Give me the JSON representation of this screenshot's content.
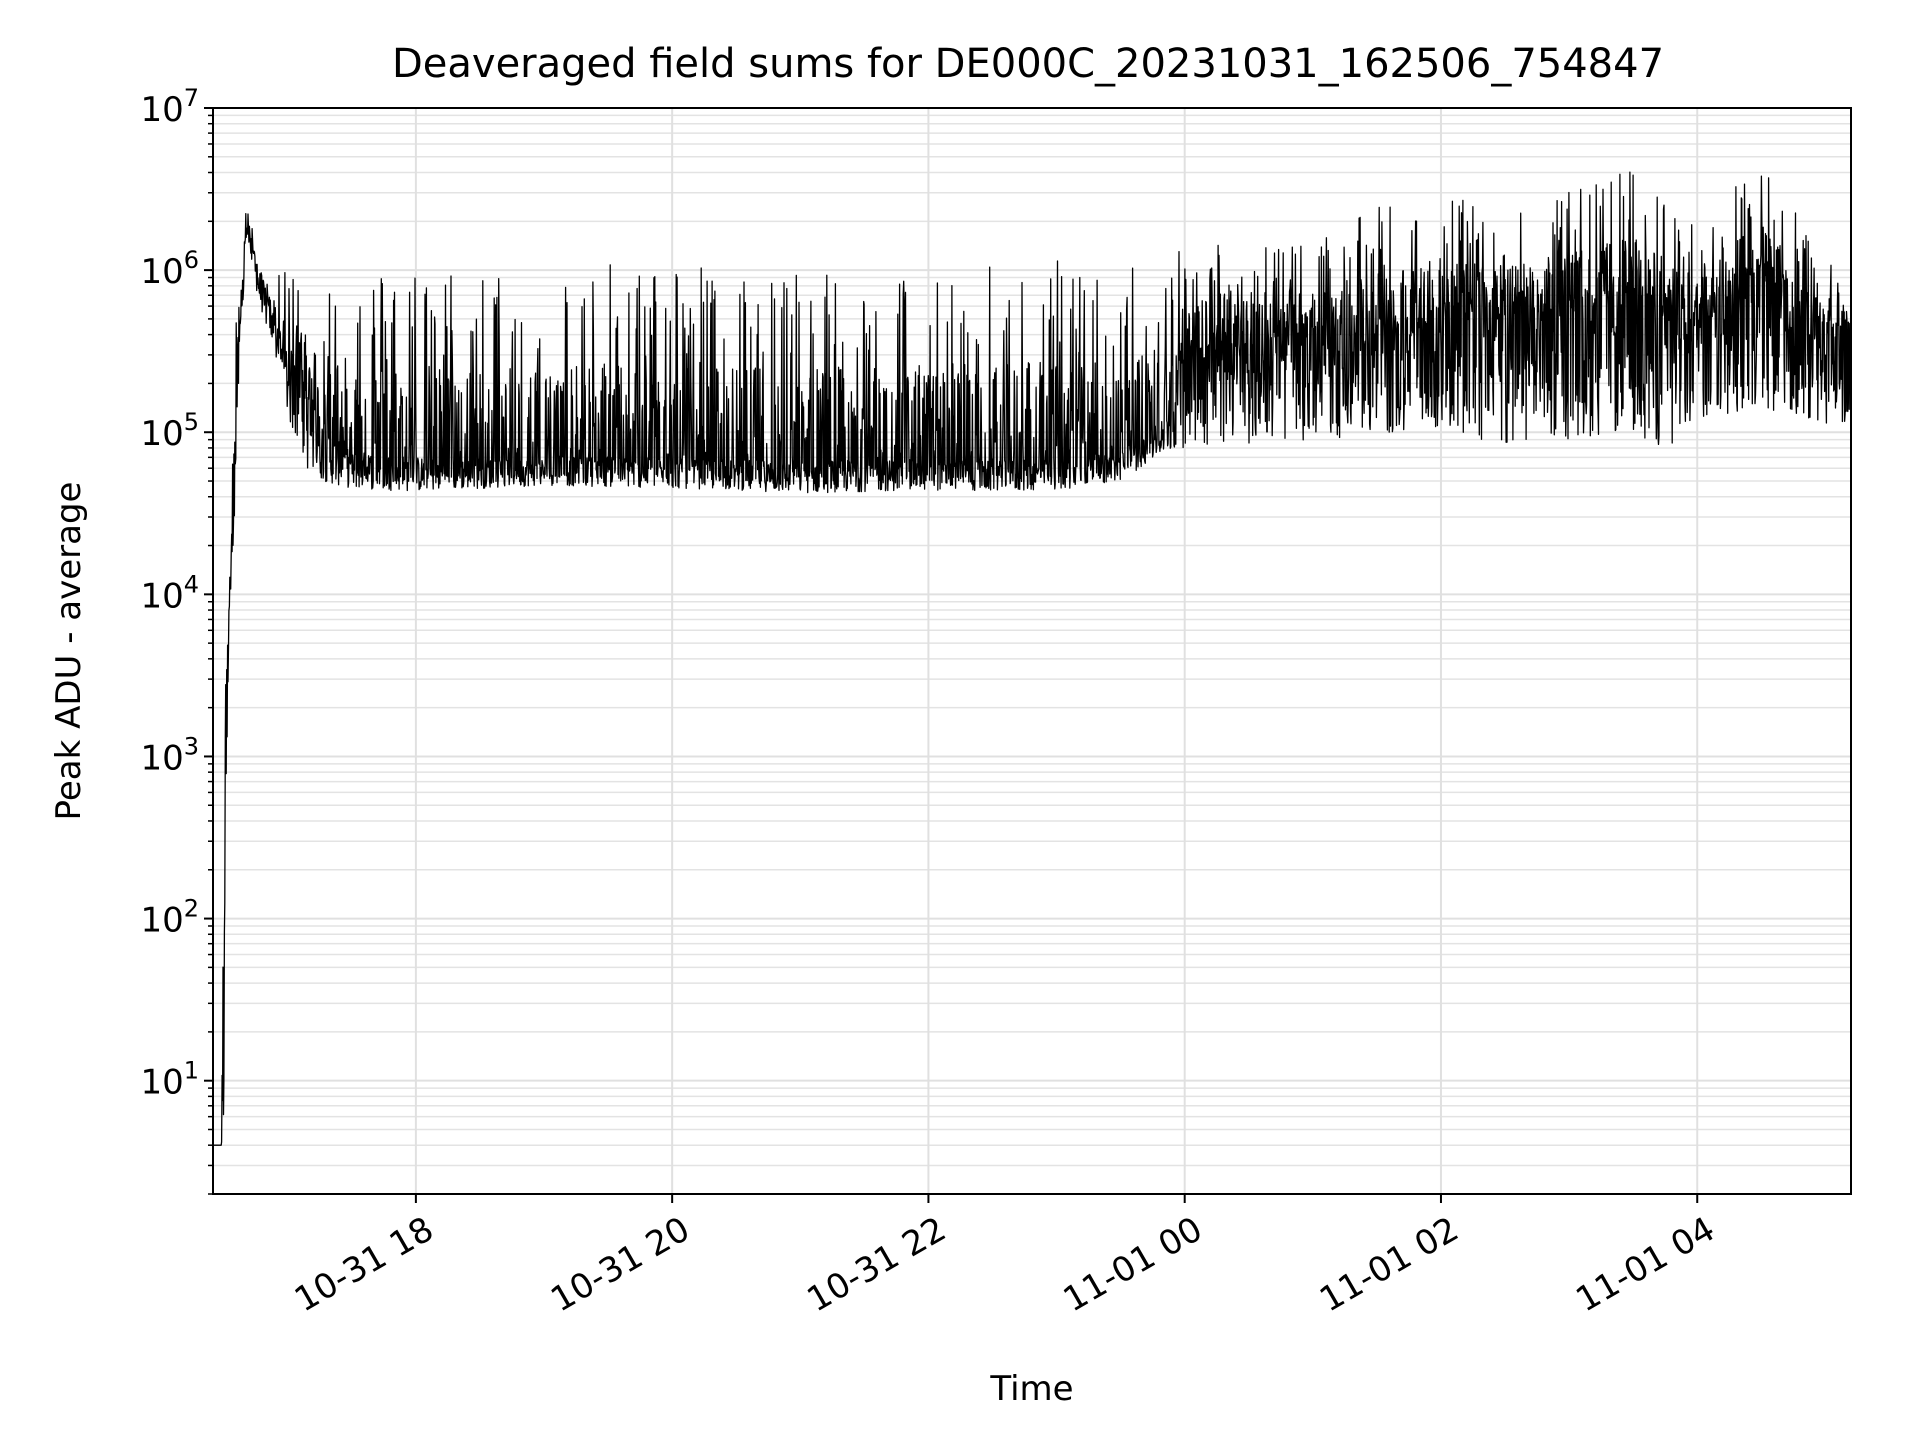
{
  "chart_data": {
    "type": "line",
    "title": "Deaveraged field sums for DE000C_20231031_162506_754847",
    "xlabel": "Time",
    "ylabel": "Peak ADU - average",
    "yscale": "log",
    "ylim": [
      2,
      10000000
    ],
    "xlim": [
      "2023-10-31T16:25",
      "2023-11-01T05:12"
    ],
    "grid": true,
    "line_color": "#000000",
    "x_ticks": [
      {
        "value": "2023-10-31T18:00",
        "label": "10-31 18"
      },
      {
        "value": "2023-10-31T20:00",
        "label": "10-31 20"
      },
      {
        "value": "2023-10-31T22:00",
        "label": "10-31 22"
      },
      {
        "value": "2023-11-01T00:00",
        "label": "11-01 00"
      },
      {
        "value": "2023-11-01T02:00",
        "label": "11-01 02"
      },
      {
        "value": "2023-11-01T04:00",
        "label": "11-01 04"
      }
    ],
    "y_ticks": [
      {
        "value": 10,
        "base": "10",
        "exp": "1"
      },
      {
        "value": 100,
        "base": "10",
        "exp": "2"
      },
      {
        "value": 1000,
        "base": "10",
        "exp": "3"
      },
      {
        "value": 10000,
        "base": "10",
        "exp": "4"
      },
      {
        "value": 100000,
        "base": "10",
        "exp": "5"
      },
      {
        "value": 1000000,
        "base": "10",
        "exp": "6"
      },
      {
        "value": 10000000,
        "base": "10",
        "exp": "7"
      }
    ],
    "series": [
      {
        "x": [
          "2023-10-31T16:25",
          "2023-10-31T16:29",
          "2023-10-31T16:30",
          "2023-10-31T16:31",
          "2023-10-31T16:33",
          "2023-10-31T16:35",
          "2023-10-31T16:37",
          "2023-10-31T16:39",
          "2023-10-31T16:41",
          "2023-10-31T16:44",
          "2023-10-31T16:47",
          "2023-10-31T16:50",
          "2023-10-31T16:52",
          "2023-10-31T16:54",
          "2023-10-31T17:00",
          "2023-10-31T17:10",
          "2023-10-31T17:20",
          "2023-10-31T17:30",
          "2023-10-31T17:45",
          "2023-10-31T18:00",
          "2023-10-31T18:30",
          "2023-10-31T19:00",
          "2023-10-31T19:30",
          "2023-10-31T20:00",
          "2023-10-31T20:30",
          "2023-10-31T21:00",
          "2023-10-31T21:30",
          "2023-10-31T22:00",
          "2023-10-31T22:30",
          "2023-10-31T23:00",
          "2023-10-31T23:30",
          "2023-10-31T23:50",
          "2023-11-01T00:00",
          "2023-11-01T00:30",
          "2023-11-01T01:00",
          "2023-11-01T01:30",
          "2023-11-01T02:00",
          "2023-11-01T02:30",
          "2023-11-01T03:00",
          "2023-11-01T03:30",
          "2023-11-01T03:50",
          "2023-11-01T04:00",
          "2023-11-01T04:30",
          "2023-11-01T05:00",
          "2023-11-01T05:12"
        ],
        "base": [
          4,
          4,
          150,
          2500,
          12000,
          40000,
          300000,
          900000,
          2000000,
          1200000,
          900000,
          650000,
          550000,
          450000,
          300000,
          150000,
          85000,
          70000,
          68000,
          65000,
          64000,
          65000,
          66000,
          64000,
          63000,
          62000,
          63000,
          62000,
          62000,
          63000,
          70000,
          100000,
          300000,
          360000,
          380000,
          400000,
          450000,
          500000,
          520000,
          600000,
          500000,
          420000,
          900000,
          450000,
          400000
        ],
        "upper": [
          4,
          4,
          170,
          2800,
          15000,
          300000,
          1000000,
          2000000,
          3000000,
          1600000,
          1100000,
          900000,
          800000,
          900000,
          1000000,
          1000000,
          1000000,
          1200000,
          1000000,
          1100000,
          1000000,
          900000,
          1100000,
          1200000,
          1000000,
          1100000,
          1000000,
          900000,
          1100000,
          1200000,
          1000000,
          1300000,
          1500000,
          1600000,
          1400000,
          2500000,
          3000000,
          2200000,
          3200000,
          4300000,
          2500000,
          1800000,
          5500000,
          1200000,
          800000
        ],
        "lower": [
          4,
          4,
          4,
          600,
          8000,
          20000,
          150000,
          600000,
          1500000,
          900000,
          600000,
          450000,
          380000,
          300000,
          120000,
          55000,
          48000,
          45000,
          44000,
          43000,
          45000,
          47000,
          46000,
          45000,
          44000,
          42000,
          43000,
          44000,
          43000,
          44000,
          50000,
          75000,
          80000,
          85000,
          90000,
          95000,
          100000,
          75000,
          90000,
          100000,
          70000,
          120000,
          140000,
          110000,
          100000
        ]
      }
    ]
  }
}
